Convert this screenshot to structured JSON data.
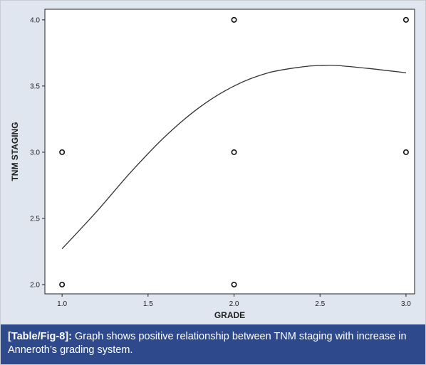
{
  "chart_data": {
    "type": "scatter",
    "title": "",
    "xlabel": "GRADE",
    "ylabel": "TNM STAGING",
    "xlim": [
      0.9,
      3.05
    ],
    "ylim": [
      1.93,
      4.08
    ],
    "x_ticks": [
      "1.0",
      "1.5",
      "2.0",
      "2.5",
      "3.0"
    ],
    "y_ticks": [
      "2.0",
      "2.5",
      "3.0",
      "3.5",
      "4.0"
    ],
    "points": [
      {
        "x": 1.0,
        "y": 2.0
      },
      {
        "x": 1.0,
        "y": 3.0
      },
      {
        "x": 2.0,
        "y": 2.0
      },
      {
        "x": 2.0,
        "y": 3.0
      },
      {
        "x": 2.0,
        "y": 4.0
      },
      {
        "x": 3.0,
        "y": 3.0
      },
      {
        "x": 3.0,
        "y": 4.0
      }
    ],
    "fit_line": {
      "x": [
        1.0,
        1.2,
        1.4,
        1.6,
        1.8,
        2.0,
        2.2,
        2.4,
        2.5,
        2.6,
        2.8,
        3.0
      ],
      "y": [
        2.27,
        2.55,
        2.85,
        3.12,
        3.34,
        3.5,
        3.6,
        3.645,
        3.655,
        3.655,
        3.63,
        3.6
      ]
    },
    "grid": false,
    "legend": "none"
  },
  "caption": {
    "ref": "[Table/Fig-8]:",
    "text": " Graph shows positive relationship between TNM staging with increase in Anneroth’s grading system."
  },
  "colors": {
    "plot_bg": "#ffffff",
    "frame_bg": "#dfe6ef",
    "caption_bg": "#2e4a8d"
  }
}
